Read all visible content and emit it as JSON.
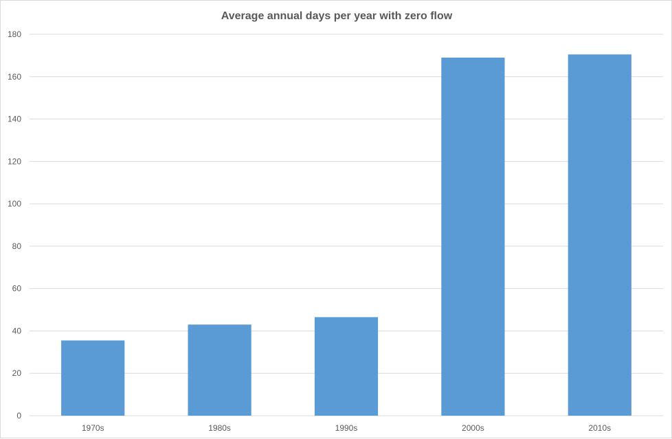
{
  "chart_data": {
    "type": "bar",
    "title": "Average annual days per year with zero flow",
    "xlabel": "",
    "ylabel": "",
    "categories": [
      "1970s",
      "1980s",
      "1990s",
      "2000s",
      "2010s"
    ],
    "series": [
      {
        "values": [
          35.5,
          43,
          46.5,
          169,
          170.5
        ],
        "color": "#5b9bd5"
      }
    ],
    "ylim": [
      0,
      180
    ],
    "yticks": [
      0,
      20,
      40,
      60,
      80,
      100,
      120,
      140,
      160,
      180
    ],
    "grid": true,
    "legend": "none"
  }
}
